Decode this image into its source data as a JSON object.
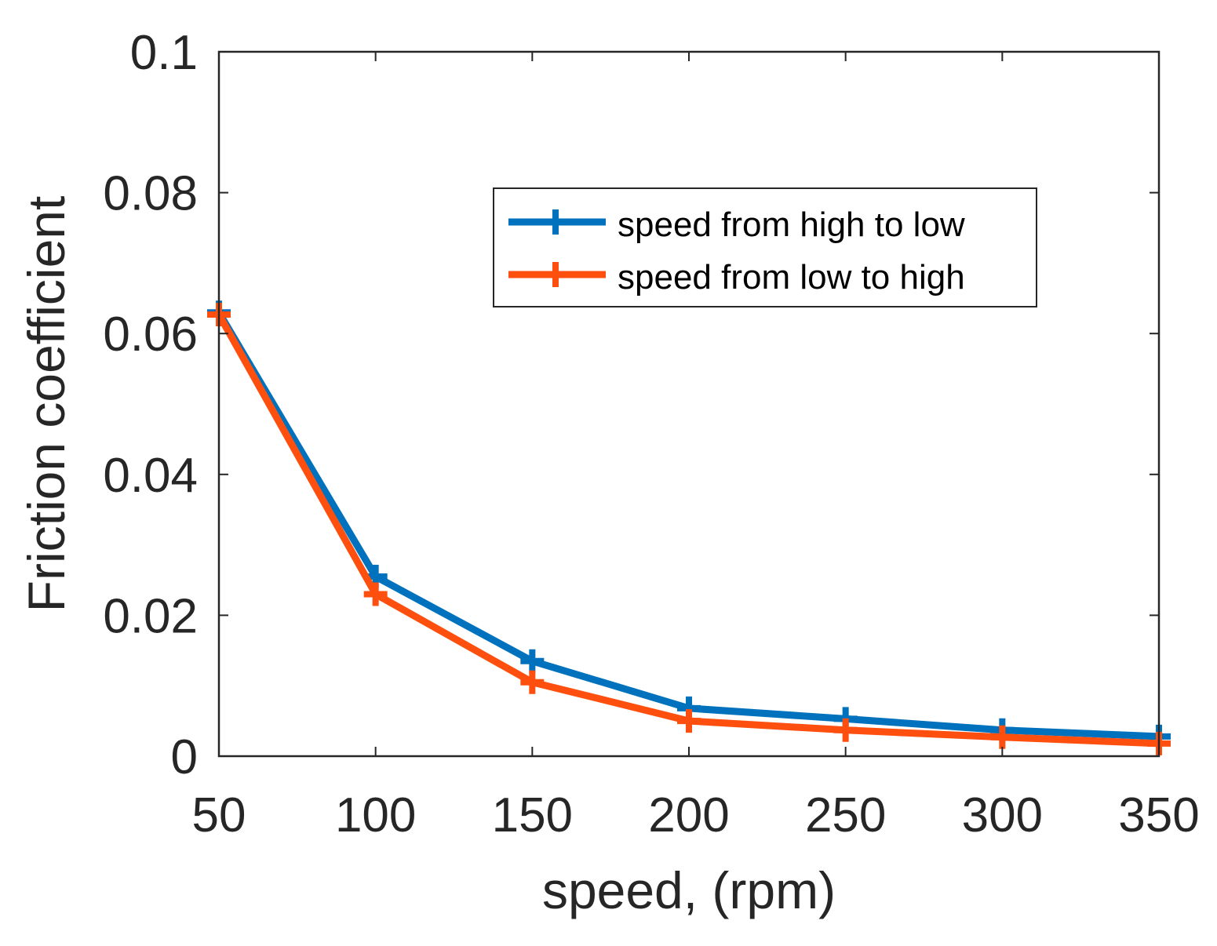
{
  "chart_data": {
    "type": "line",
    "title": "",
    "xlabel": "speed, (rpm)",
    "ylabel": "Friction coefficient",
    "xlim": [
      50,
      350
    ],
    "ylim": [
      0,
      0.1
    ],
    "x_ticks": [
      "50",
      "100",
      "150",
      "200",
      "250",
      "300",
      "350"
    ],
    "y_ticks": [
      "0",
      "0.02",
      "0.04",
      "0.06",
      "0.08",
      "0.1"
    ],
    "x": [
      50,
      100,
      150,
      200,
      250,
      300,
      350
    ],
    "legend_position": "upper-right",
    "grid": false,
    "series": [
      {
        "name": "speed from high to low",
        "color": "#0072BD",
        "marker": "plus",
        "values": [
          0.063,
          0.0255,
          0.0135,
          0.0068,
          0.0053,
          0.0037,
          0.0028
        ]
      },
      {
        "name": "speed from low to high",
        "color": "#FF4F0F",
        "marker": "plus",
        "values": [
          0.0627,
          0.023,
          0.0105,
          0.005,
          0.0037,
          0.0027,
          0.0018
        ]
      }
    ]
  }
}
